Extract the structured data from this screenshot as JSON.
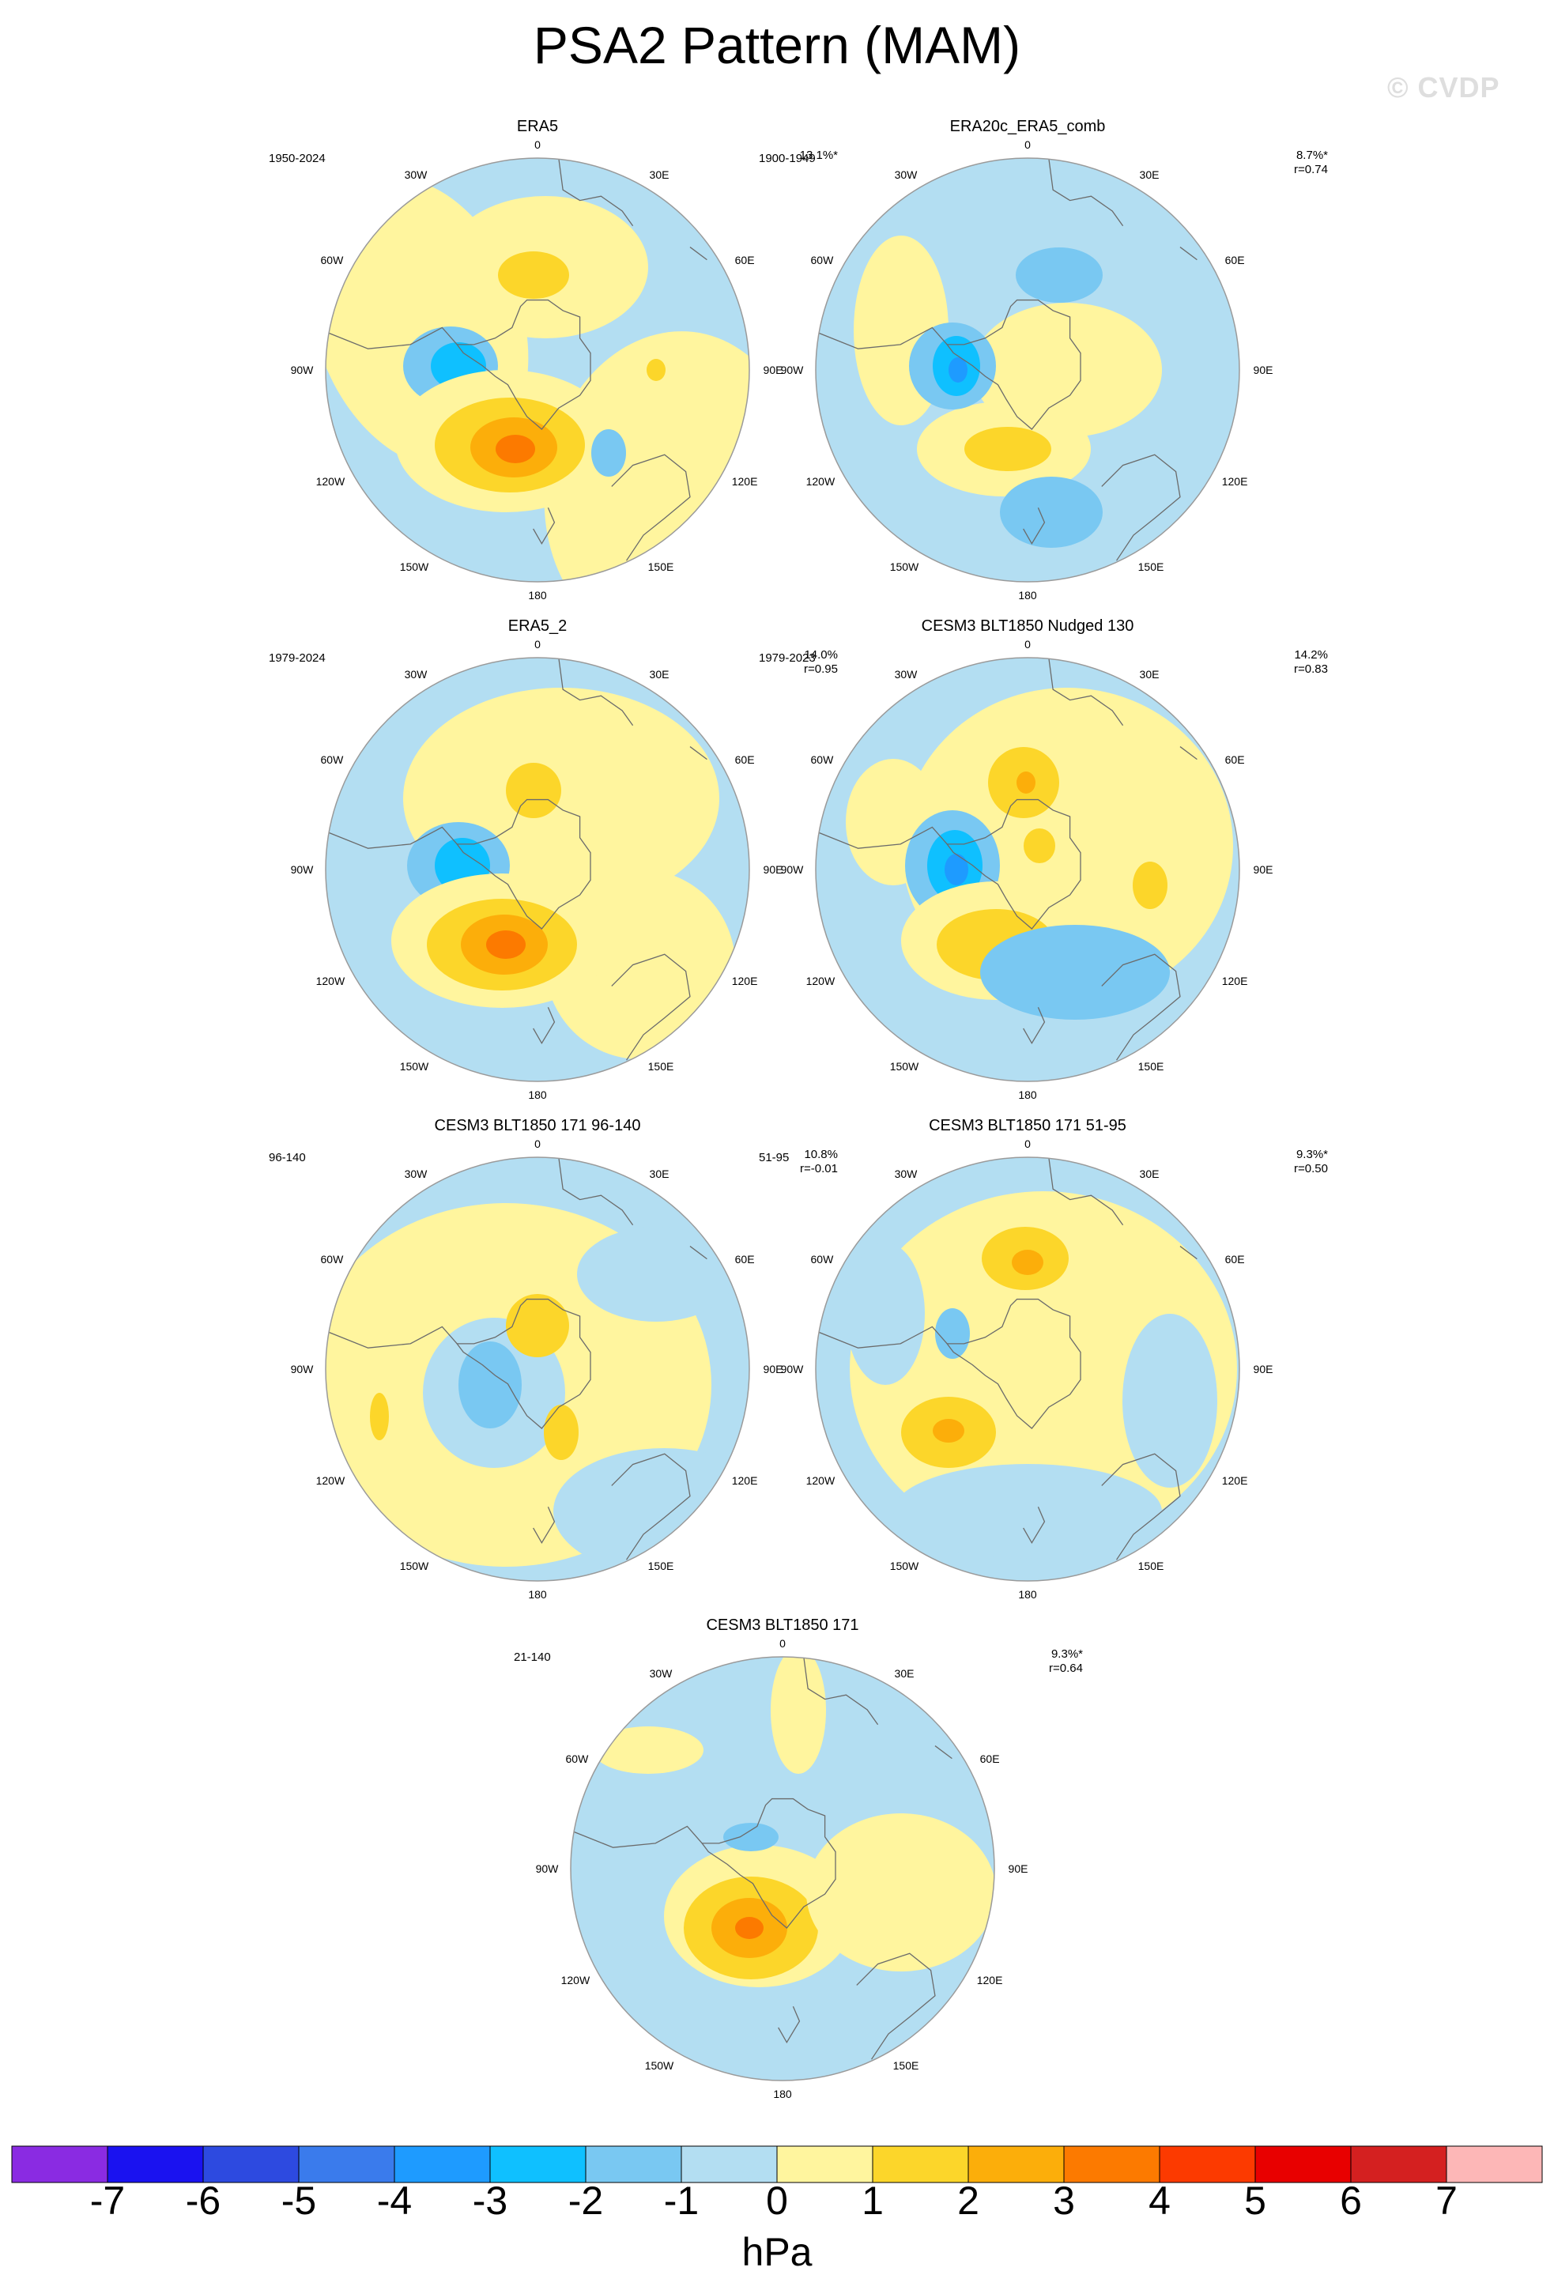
{
  "figure": {
    "title": "PSA2 Pattern (MAM)",
    "watermark": "© CVDP"
  },
  "map_labels": {
    "top": "0",
    "bottom": "180",
    "left": "90W",
    "right": "90E",
    "ul_inner": "30W",
    "ur_inner": "30E",
    "ul_outer": "60W",
    "ur_outer": "60E",
    "ll_outer": "120W",
    "lr_outer": "120E",
    "ll_inner": "150W",
    "lr_inner": "150E"
  },
  "panels": [
    {
      "title": "ERA5",
      "years": "1950-2024",
      "pct": "13.1%*",
      "r": ""
    },
    {
      "title": "ERA20c_ERA5_comb",
      "years": "1900-1949",
      "pct": "8.7%*",
      "r": "r=0.74"
    },
    {
      "title": "ERA5_2",
      "years": "1979-2024",
      "pct": "14.0%",
      "r": "r=0.95"
    },
    {
      "title": "CESM3 BLT1850 Nudged 130",
      "years": "1979-2023",
      "pct": "14.2%",
      "r": "r=0.83"
    },
    {
      "title": "CESM3 BLT1850 171 96-140",
      "years": "96-140",
      "pct": "10.8%",
      "r": "r=-0.01"
    },
    {
      "title": "CESM3 BLT1850 171 51-95",
      "years": "51-95",
      "pct": "9.3%*",
      "r": "r=0.50"
    },
    {
      "title": "CESM3 BLT1850 171",
      "years": "21-140",
      "pct": "9.3%*",
      "r": "r=0.64"
    }
  ],
  "colorbar": {
    "unit": "hPa",
    "labels": [
      "-7",
      "-6",
      "-5",
      "-4",
      "-3",
      "-2",
      "-1",
      "0",
      "1",
      "2",
      "3",
      "4",
      "5",
      "6",
      "7"
    ],
    "colors": [
      "#8a2be2",
      "#1a12f0",
      "#2d4ae0",
      "#3a7bec",
      "#1e9bff",
      "#0fc0ff",
      "#79c8f2",
      "#b3def2",
      "#fff59e",
      "#fcd62a",
      "#fcae0a",
      "#fc7a00",
      "#fc3a00",
      "#e80000",
      "#d42020",
      "#fdb7b7"
    ]
  }
}
